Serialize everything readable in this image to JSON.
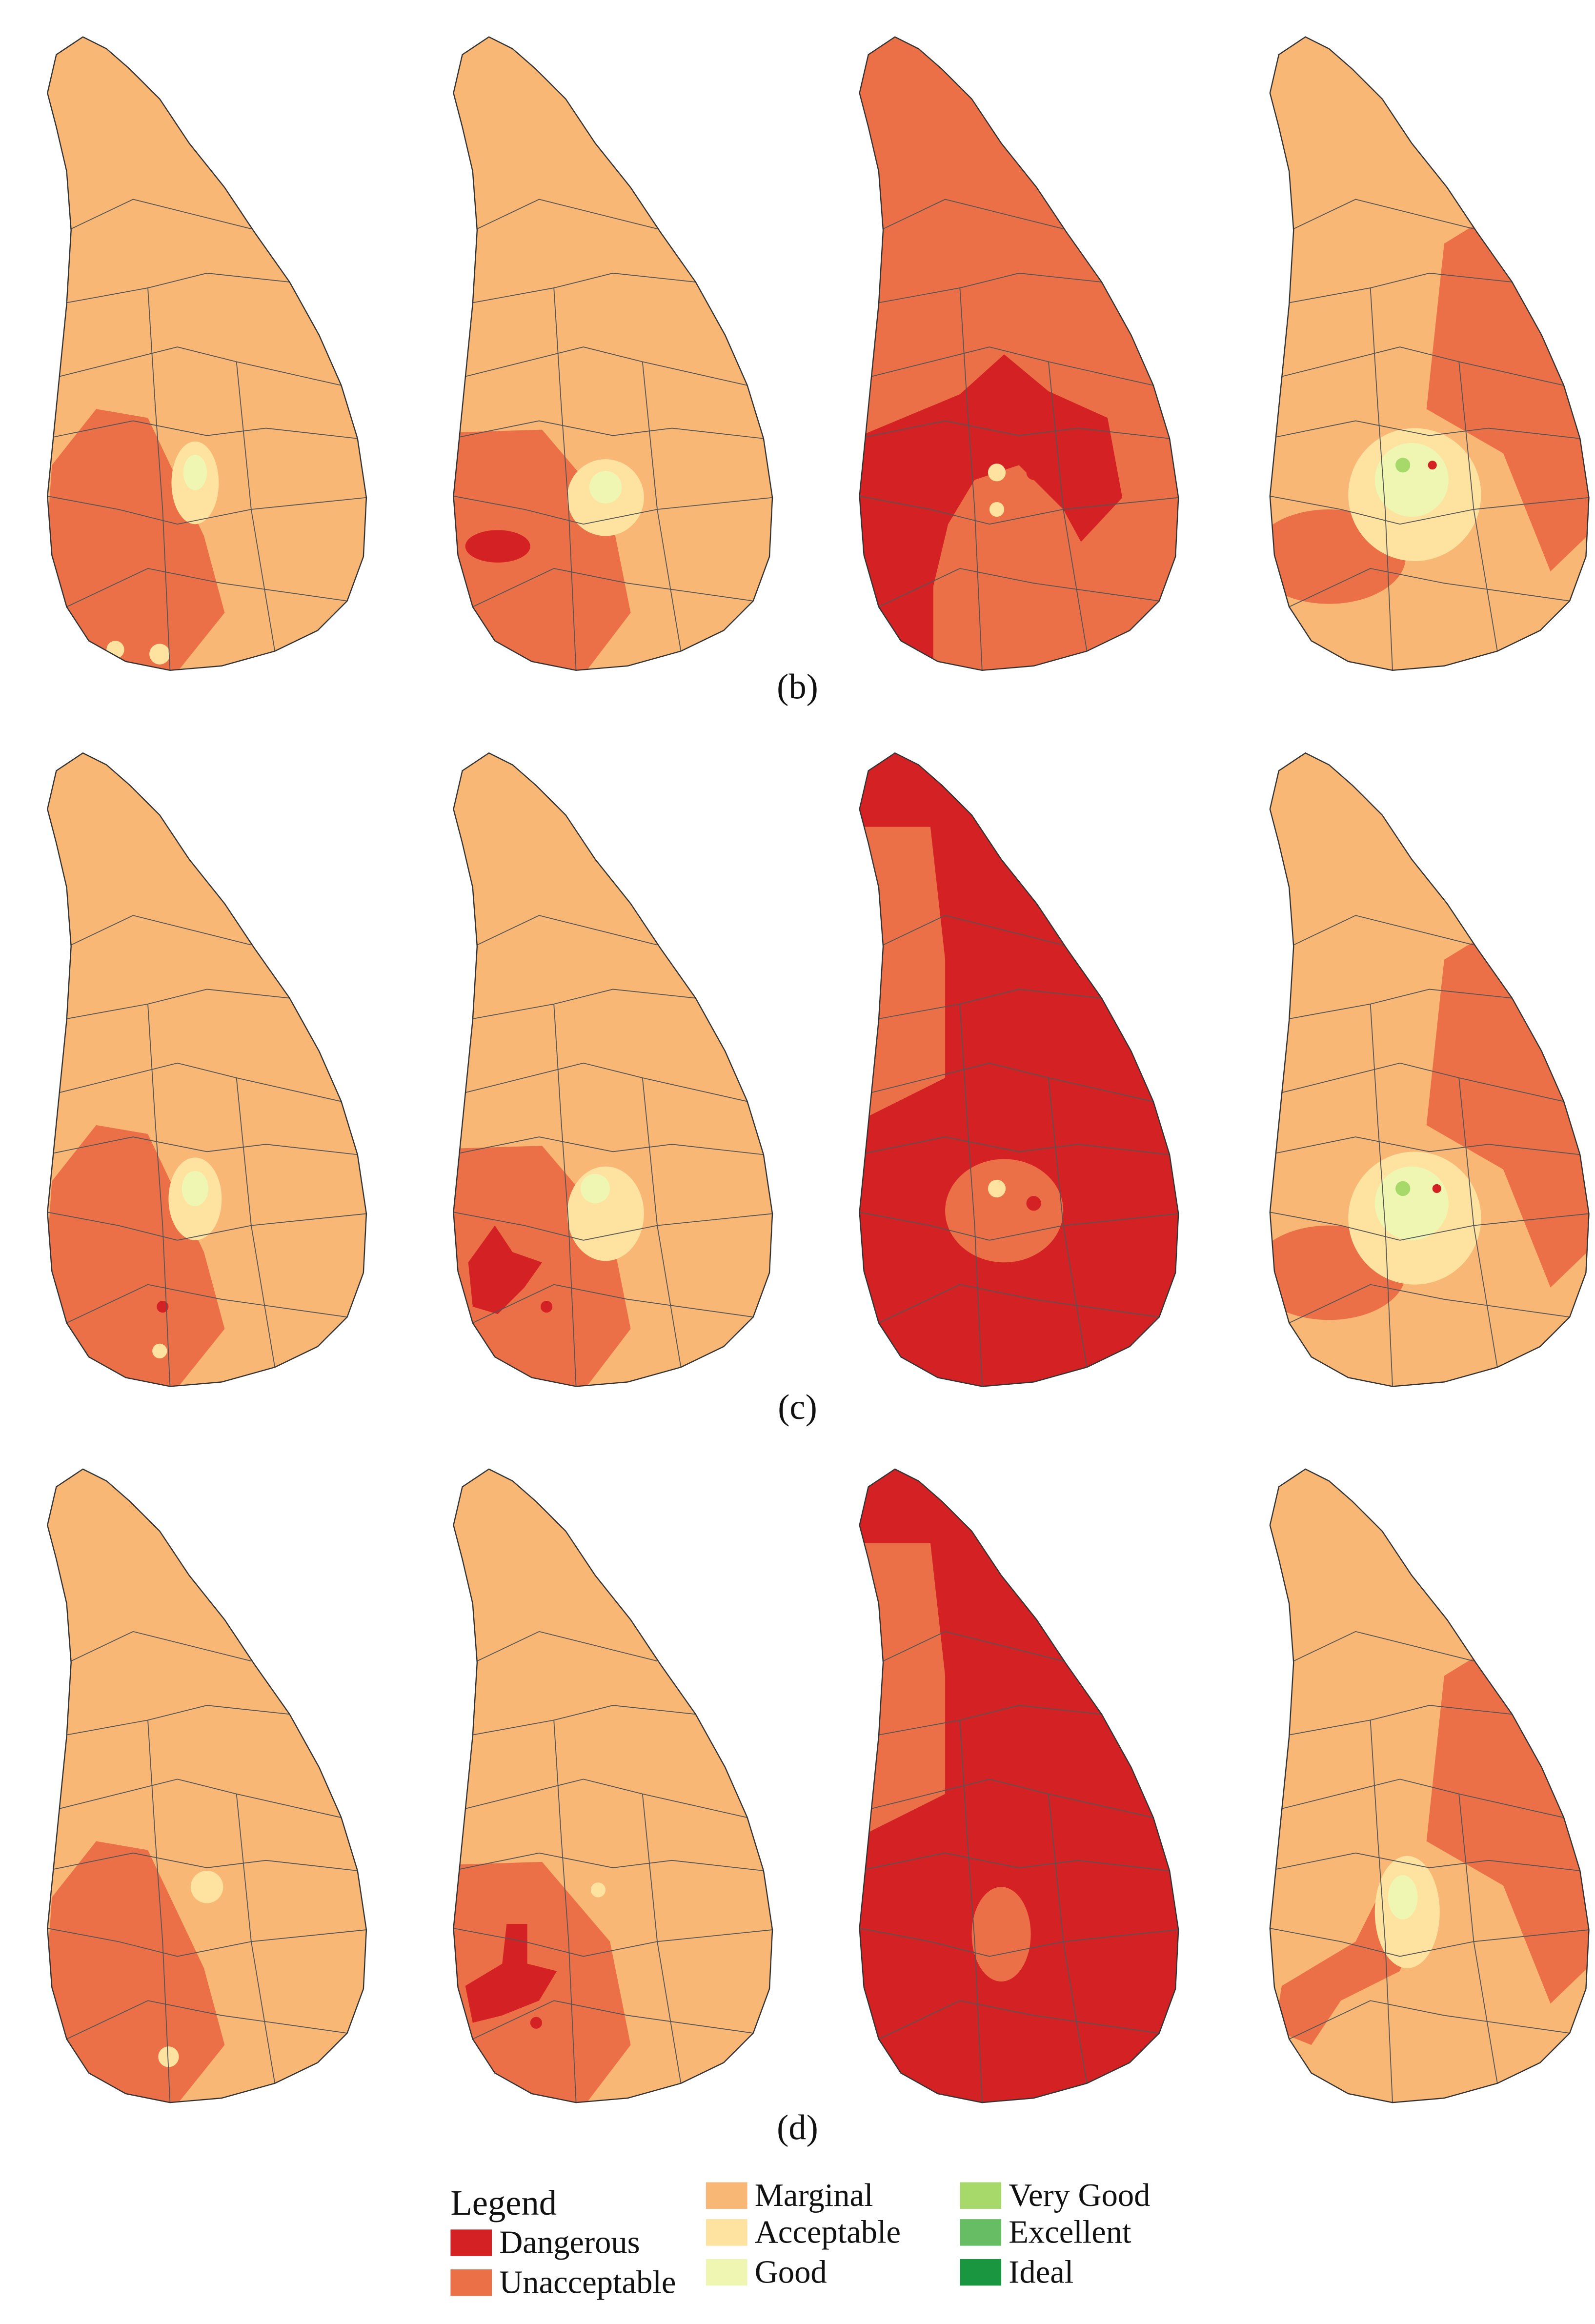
{
  "panels": [
    {
      "label": "(b)"
    },
    {
      "label": "(c)"
    },
    {
      "label": "(d)"
    }
  ],
  "legend": {
    "title": "Legend",
    "items": [
      {
        "name": "Dangerous",
        "color": "#d42124"
      },
      {
        "name": "Unacceptable",
        "color": "#ec7047"
      },
      {
        "name": "Marginal",
        "color": "#f9b776"
      },
      {
        "name": "Acceptable",
        "color": "#fde2a0"
      },
      {
        "name": "Good",
        "color": "#eef6b2"
      },
      {
        "name": "Very Good",
        "color": "#a6d96a"
      },
      {
        "name": "Excellent",
        "color": "#66bd63"
      },
      {
        "name": "Ideal",
        "color": "#1a9641"
      }
    ]
  }
}
